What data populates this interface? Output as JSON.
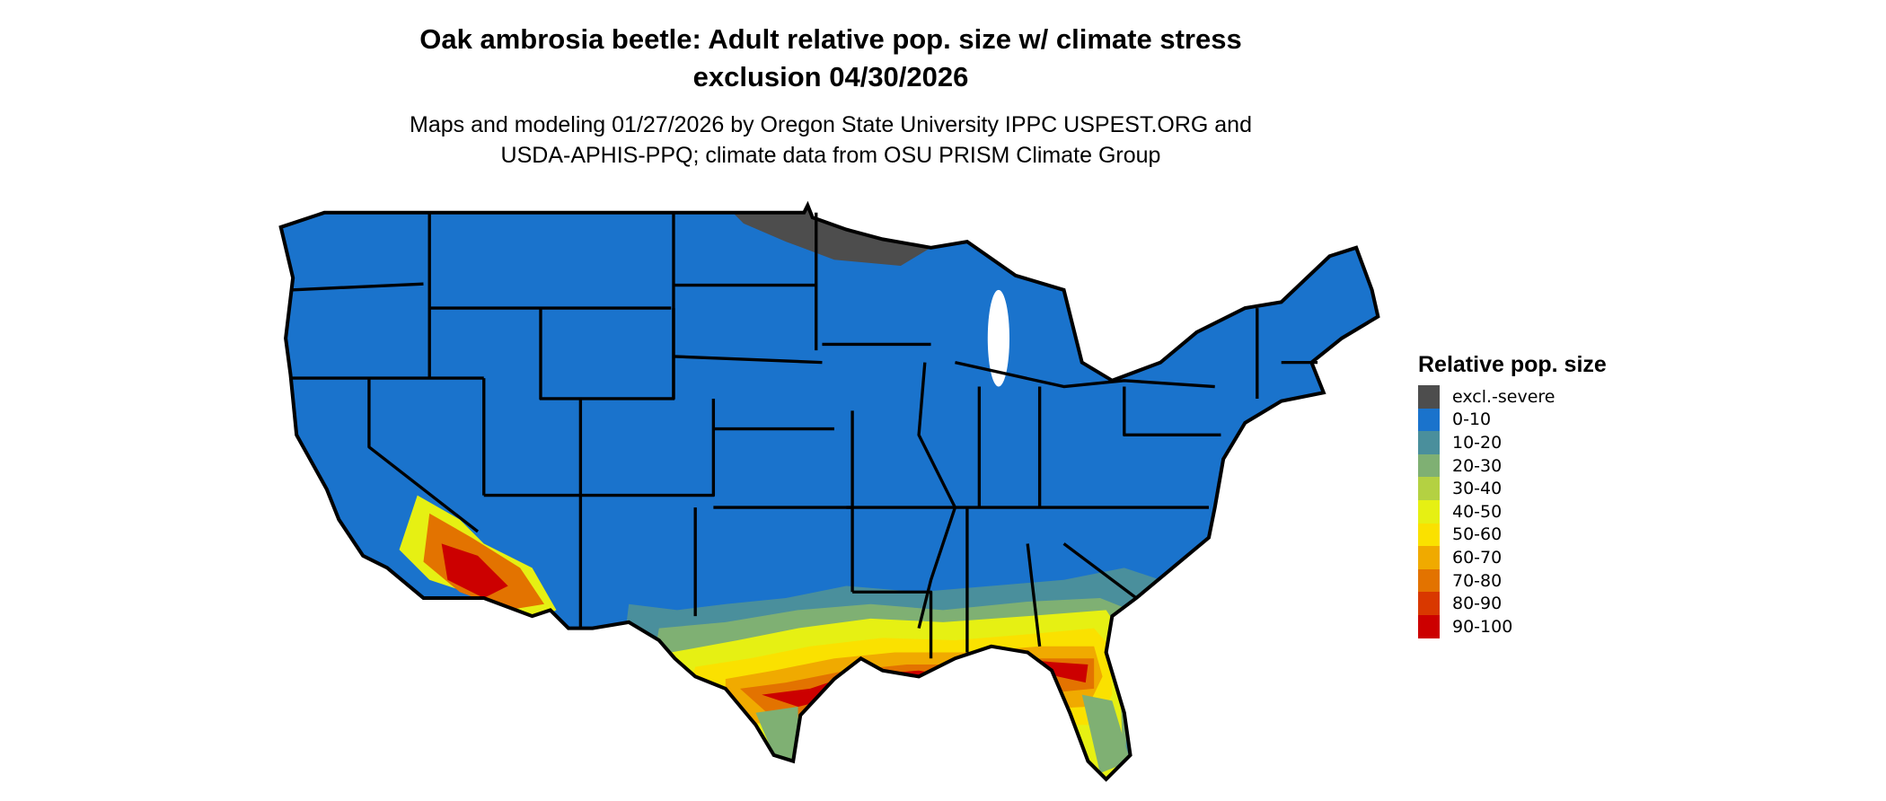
{
  "header": {
    "title_line1": "Oak ambrosia beetle: Adult relative pop. size w/ climate stress",
    "title_line2": "exclusion 04/30/2026",
    "subtitle_line1": "Maps and modeling 01/27/2026 by Oregon State University IPPC USPEST.ORG and",
    "subtitle_line2": "USDA-APHIS-PPQ; climate data from OSU PRISM Climate Group"
  },
  "legend": {
    "title": "Relative pop. size",
    "items": [
      {
        "label": "excl.-severe",
        "color": "#4d4d4d"
      },
      {
        "label": "0-10",
        "color": "#1a73cc"
      },
      {
        "label": "10-20",
        "color": "#4a8f9c"
      },
      {
        "label": "20-30",
        "color": "#7fb073"
      },
      {
        "label": "30-40",
        "color": "#b4d142"
      },
      {
        "label": "40-50",
        "color": "#e6f013"
      },
      {
        "label": "50-60",
        "color": "#fae100"
      },
      {
        "label": "60-70",
        "color": "#f0aa00"
      },
      {
        "label": "70-80",
        "color": "#e37300"
      },
      {
        "label": "80-90",
        "color": "#d93800"
      },
      {
        "label": "90-100",
        "color": "#cc0000"
      }
    ]
  },
  "map": {
    "region": "Contiguous United States",
    "base_category": "0-10",
    "border_color": "#000000"
  }
}
